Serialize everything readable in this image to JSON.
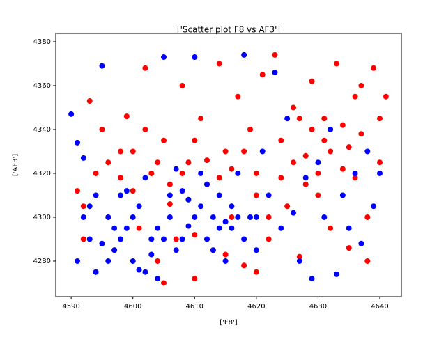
{
  "chart_data": {
    "type": "scatter",
    "title": "['Scatter plot F8 vs AF3']",
    "x_label": "['F8']",
    "y_label": "['AF3']",
    "xlim": [
      4587.5,
      4643.5
    ],
    "ylim": [
      4263.8,
      4383.8
    ],
    "xticks": [
      4590,
      4600,
      4610,
      4620,
      4630,
      4640
    ],
    "yticks": [
      4280,
      4300,
      4320,
      4340,
      4360,
      4380
    ],
    "series": [
      {
        "color": "#ff0000",
        "x": [
          4591,
          4592,
          4593,
          4594,
          4595,
          4596,
          4597,
          4598,
          4599,
          4600,
          4601,
          4602,
          4603,
          4604,
          4605,
          4606,
          4607,
          4608,
          4609,
          4610,
          4611,
          4612,
          4613,
          4614,
          4615,
          4616,
          4617,
          4618,
          4619,
          4620,
          4621,
          4622,
          4623,
          4624,
          4625,
          4626,
          4627,
          4628,
          4629,
          4630,
          4631,
          4632,
          4633,
          4634,
          4635,
          4636,
          4637,
          4638,
          4639,
          4640,
          4641,
          4640,
          4638,
          4636,
          4634,
          4632,
          4630,
          4628,
          4626,
          4624,
          4622,
          4620,
          4618,
          4616,
          4614,
          4612,
          4610,
          4608,
          4606,
          4604,
          4602,
          4600,
          4598,
          4596,
          4594,
          4592,
          4620,
          4615,
          4610,
          4605,
          4635,
          4637,
          4629,
          4627,
          4631
        ],
        "values": [
          4312,
          4290,
          4353,
          4275,
          4340,
          4300,
          4285,
          4330,
          4346,
          4312,
          4295,
          4368,
          4320,
          4280,
          4335,
          4306,
          4290,
          4360,
          4325,
          4272,
          4345,
          4315,
          4285,
          4370,
          4330,
          4300,
          4355,
          4278,
          4340,
          4320,
          4365,
          4290,
          4374,
          4335,
          4305,
          4350,
          4282,
          4328,
          4362,
          4310,
          4345,
          4295,
          4370,
          4322,
          4286,
          4355,
          4338,
          4300,
          4368,
          4345,
          4355,
          4325,
          4280,
          4318,
          4342,
          4330,
          4320,
          4315,
          4325,
          4318,
          4300,
          4310,
          4330,
          4322,
          4318,
          4326,
          4335,
          4320,
          4315,
          4325,
          4340,
          4330,
          4318,
          4325,
          4320,
          4305,
          4275,
          4283,
          4292,
          4270,
          4332,
          4360,
          4340,
          4345,
          4335
        ]
      },
      {
        "color": "#0000ff",
        "x": [
          4590,
          4591,
          4592,
          4593,
          4594,
          4595,
          4596,
          4597,
          4598,
          4599,
          4600,
          4601,
          4602,
          4603,
          4604,
          4605,
          4606,
          4607,
          4608,
          4609,
          4610,
          4611,
          4612,
          4613,
          4614,
          4615,
          4616,
          4617,
          4618,
          4619,
          4620,
          4621,
          4622,
          4623,
          4624,
          4625,
          4626,
          4627,
          4628,
          4629,
          4630,
          4631,
          4632,
          4633,
          4634,
          4635,
          4636,
          4637,
          4638,
          4639,
          4640,
          4592,
          4594,
          4596,
          4598,
          4600,
          4602,
          4604,
          4606,
          4608,
          4610,
          4612,
          4614,
          4616,
          4618,
          4620,
          4591,
          4593,
          4597,
          4603,
          4609,
          4613,
          4617,
          4595,
          4599,
          4611,
          4615,
          4607,
          4601,
          4605
        ],
        "values": [
          4347,
          4334,
          4327,
          4290,
          4275,
          4369,
          4300,
          4285,
          4310,
          4295,
          4280,
          4305,
          4318,
          4290,
          4272,
          4373,
          4300,
          4285,
          4312,
          4296,
          4373,
          4305,
          4290,
          4300,
          4310,
          4280,
          4295,
          4320,
          4374,
          4300,
          4285,
          4330,
          4310,
          4366,
          4295,
          4345,
          4302,
          4280,
          4318,
          4272,
          4325,
          4300,
          4340,
          4274,
          4310,
          4295,
          4320,
          4288,
          4330,
          4305,
          4320,
          4300,
          4310,
          4280,
          4290,
          4300,
          4275,
          4295,
          4310,
          4290,
          4300,
          4315,
          4295,
          4305,
          4290,
          4300,
          4280,
          4305,
          4295,
          4283,
          4308,
          4285,
          4300,
          4288,
          4312,
          4320,
          4298,
          4322,
          4276,
          4290
        ]
      }
    ]
  }
}
